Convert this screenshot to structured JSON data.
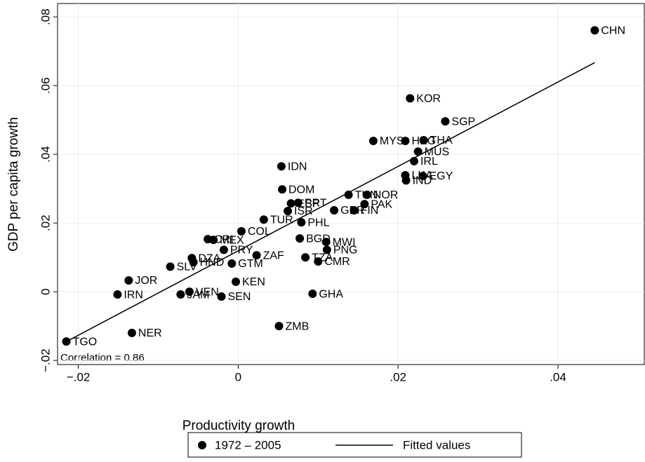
{
  "chart_data": {
    "type": "scatter",
    "xlabel": "Productivity growth",
    "ylabel": "GDP per capita growth",
    "annotation": "Correlation = 0.86",
    "xlim": [
      -0.0226,
      0.0508
    ],
    "ylim": [
      -0.0212,
      0.0839
    ],
    "xticks": [
      {
        "value": -0.02,
        "label": "−.02"
      },
      0,
      {
        "value": 0.02,
        "label": ".02"
      },
      {
        "value": 0.04,
        "label": ".04"
      }
    ],
    "yticks": [
      {
        "value": -0.02,
        "label": "−.02"
      },
      0,
      {
        "value": 0.02,
        "label": ".02"
      },
      {
        "value": 0.04,
        "label": ".04"
      },
      {
        "value": 0.06,
        "label": ".06"
      },
      {
        "value": 0.08,
        "label": ".08"
      }
    ],
    "grid": true,
    "legend": "bottom",
    "series": [
      {
        "name": "1972 – 2005",
        "color": "#000000",
        "labels": [
          "CHN",
          "KOR",
          "SGP",
          "THA",
          "HKG",
          "MYS",
          "MUS",
          "IRL",
          "LKA",
          "EGY",
          "IND",
          "IDN",
          "DOM",
          "TUN",
          "NOR",
          "PAK",
          "FIN",
          "GBR",
          "ESP",
          "PRT",
          "ISR",
          "TUR",
          "PHL",
          "COL",
          "CRI",
          "MEX",
          "PRY",
          "ZAF",
          "GTM",
          "DZA",
          "HND",
          "SLV",
          "JOR",
          "IRN",
          "JAM",
          "VEN",
          "SEN",
          "KEN",
          "TZA",
          "CMR",
          "PNG",
          "MWI",
          "BGD",
          "GHA",
          "ZMB",
          "NER",
          "TGO"
        ],
        "x": [
          0.0446,
          0.0215,
          0.0259,
          0.0232,
          0.0209,
          0.0169,
          0.0225,
          0.022,
          0.0209,
          0.0231,
          0.021,
          0.0054,
          0.0055,
          0.0138,
          0.0161,
          0.0158,
          0.0145,
          0.012,
          0.0066,
          0.0075,
          0.0062,
          0.0032,
          0.0079,
          0.0004,
          -0.0038,
          -0.0031,
          -0.0018,
          0.0023,
          -0.0008,
          -0.0058,
          -0.0056,
          -0.0085,
          -0.0137,
          -0.0151,
          -0.0072,
          -0.0061,
          -0.0021,
          -0.0003,
          0.0084,
          0.01,
          0.0111,
          0.011,
          0.0077,
          0.0093,
          0.0051,
          -0.0133,
          -0.0215
        ],
        "values": [
          0.0761,
          0.0563,
          0.0496,
          0.0441,
          0.0439,
          0.0439,
          0.0408,
          0.038,
          0.0339,
          0.0337,
          0.0324,
          0.0365,
          0.0298,
          0.0282,
          0.0282,
          0.0255,
          0.0237,
          0.0237,
          0.0257,
          0.0259,
          0.0235,
          0.021,
          0.0202,
          0.0176,
          0.0153,
          0.0151,
          0.0122,
          0.0106,
          0.0082,
          0.0098,
          0.0086,
          0.0073,
          0.0033,
          -0.0008,
          -0.0008,
          0.0,
          -0.0014,
          0.0029,
          0.01,
          0.0088,
          0.0122,
          0.0145,
          0.0155,
          -0.0006,
          -0.01,
          -0.012,
          -0.0145
        ]
      },
      {
        "name": "Fitted values",
        "type": "line",
        "color": "#000000",
        "x": [
          -0.0215,
          0.0446
        ],
        "values": [
          -0.0145,
          0.0667
        ]
      }
    ]
  }
}
